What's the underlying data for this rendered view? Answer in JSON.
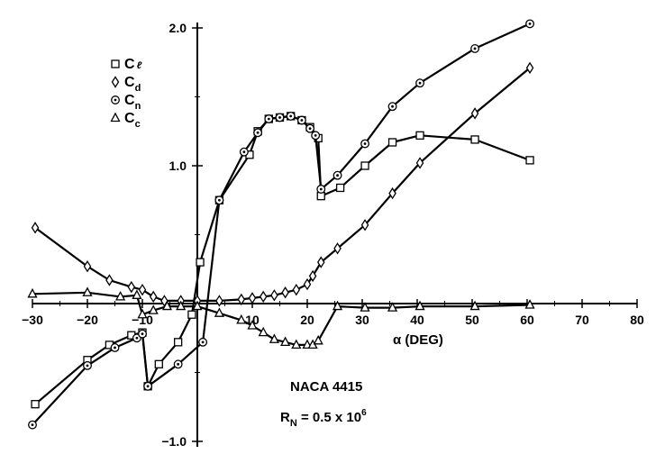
{
  "chart_data": {
    "type": "line",
    "xlabel": "α (DEG)",
    "ylabel": "",
    "xlim": [
      -30,
      80
    ],
    "ylim": [
      -1.0,
      2.0
    ],
    "x_ticks": [
      "−30",
      "−20",
      "−10",
      "0",
      "10",
      "20",
      "30",
      "40",
      "50",
      "60",
      "70",
      "80"
    ],
    "y_ticks": [
      "2.0",
      "1.0",
      "−1.0"
    ],
    "grid": false,
    "legend_position": "top-left",
    "annotations": {
      "airfoil": "NACA 4415",
      "reynolds_base": "R",
      "reynolds_sub": "N",
      "reynolds_value": " = 0.5 x 10",
      "reynolds_exp": "6"
    },
    "series": [
      {
        "name": "Cℓ",
        "label_main": "C",
        "label_sub": "ℓ",
        "marker": "square",
        "x": [
          -29.5,
          -20,
          -16,
          -12,
          -10,
          -9,
          -7,
          -3.5,
          -1,
          0.5,
          4,
          9.5,
          11,
          13,
          15,
          17,
          19,
          20.5,
          22,
          22.5,
          26,
          30.5,
          35.5,
          40.5,
          50.5,
          60.5
        ],
        "y": [
          -0.73,
          -0.41,
          -0.3,
          -0.23,
          -0.21,
          -0.6,
          -0.44,
          -0.28,
          -0.08,
          0.3,
          0.75,
          1.08,
          1.25,
          1.34,
          1.35,
          1.36,
          1.33,
          1.28,
          1.2,
          0.78,
          0.84,
          1.0,
          1.17,
          1.22,
          1.19,
          1.04
        ]
      },
      {
        "name": "Cd",
        "label_main": "C",
        "label_sub": "d",
        "marker": "diamond",
        "x": [
          -29.5,
          -20,
          -16,
          -12,
          -10,
          -8,
          -6,
          -3,
          0,
          4,
          8,
          10,
          12,
          14,
          16,
          18,
          20,
          21,
          22.5,
          25.5,
          30.5,
          35.5,
          40.5,
          50.5,
          60.5
        ],
        "y": [
          0.55,
          0.27,
          0.17,
          0.12,
          0.1,
          0.05,
          0.02,
          0.02,
          0.02,
          0.02,
          0.03,
          0.04,
          0.05,
          0.06,
          0.08,
          0.1,
          0.14,
          0.2,
          0.3,
          0.4,
          0.57,
          0.8,
          1.02,
          1.38,
          1.71
        ]
      },
      {
        "name": "Cn",
        "label_main": "C",
        "label_sub": "n",
        "marker": "circle",
        "x": [
          -30,
          -20,
          -15,
          -11,
          -10,
          -9,
          -3.5,
          1,
          4,
          8.5,
          11,
          13,
          15,
          17,
          19,
          20.5,
          21.5,
          22.5,
          25.5,
          30.5,
          35.5,
          40.5,
          50.5,
          60.5
        ],
        "y": [
          -0.88,
          -0.45,
          -0.32,
          -0.25,
          -0.22,
          -0.6,
          -0.44,
          -0.28,
          0.75,
          1.1,
          1.24,
          1.34,
          1.35,
          1.36,
          1.33,
          1.27,
          1.22,
          0.83,
          0.93,
          1.16,
          1.43,
          1.6,
          1.85,
          2.03
        ]
      },
      {
        "name": "Cc",
        "label_main": "C",
        "label_sub": "c",
        "marker": "triangle",
        "x": [
          -30,
          -20,
          -14,
          -11,
          -10,
          -8,
          -5.5,
          -3,
          0,
          4,
          8,
          10,
          12,
          14,
          16,
          18,
          20,
          21,
          22,
          25.5,
          30.5,
          35.5,
          40.5,
          50.5,
          60.5
        ],
        "y": [
          0.07,
          0.08,
          0.05,
          0.06,
          -0.08,
          -0.05,
          -0.02,
          -0.02,
          -0.02,
          -0.07,
          -0.12,
          -0.16,
          -0.21,
          -0.26,
          -0.28,
          -0.3,
          -0.3,
          -0.3,
          -0.27,
          -0.02,
          -0.03,
          -0.03,
          -0.02,
          -0.02,
          -0.01
        ]
      }
    ]
  }
}
